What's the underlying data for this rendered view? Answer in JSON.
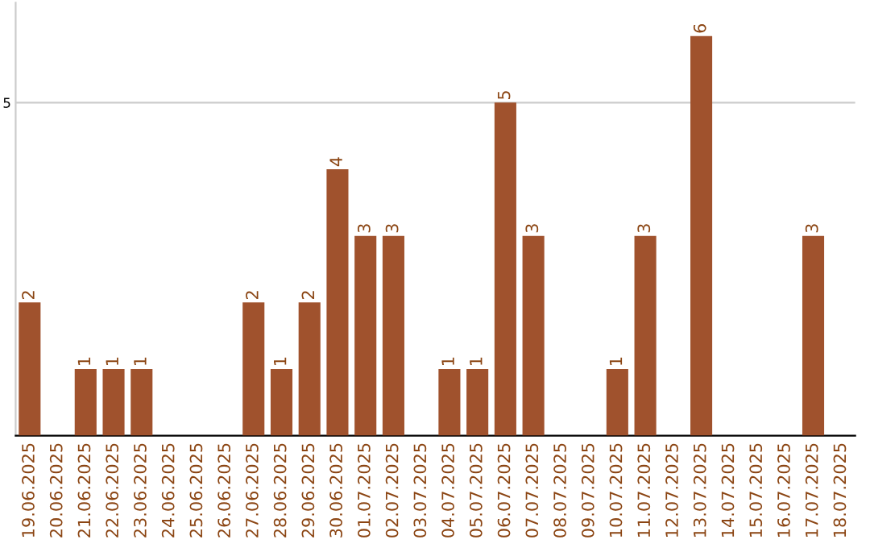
{
  "chart_data": {
    "type": "bar",
    "categories": [
      "19.06.2025",
      "20.06.2025",
      "21.06.2025",
      "22.06.2025",
      "23.06.2025",
      "24.06.2025",
      "25.06.2025",
      "26.06.2025",
      "27.06.2025",
      "28.06.2025",
      "29.06.2025",
      "30.06.2025",
      "01.07.2025",
      "02.07.2025",
      "03.07.2025",
      "04.07.2025",
      "05.07.2025",
      "06.07.2025",
      "07.07.2025",
      "08.07.2025",
      "09.07.2025",
      "10.07.2025",
      "11.07.2025",
      "12.07.2025",
      "13.07.2025",
      "14.07.2025",
      "15.07.2025",
      "16.07.2025",
      "17.07.2025",
      "18.07.2025"
    ],
    "values": [
      2,
      0,
      1,
      1,
      1,
      0,
      0,
      0,
      2,
      1,
      2,
      4,
      3,
      3,
      0,
      1,
      1,
      5,
      3,
      0,
      0,
      1,
      3,
      0,
      6,
      0,
      0,
      0,
      3,
      0
    ],
    "value_labels": [
      "2",
      null,
      "1",
      "1",
      "1",
      null,
      null,
      null,
      "2",
      "1",
      "2",
      "4",
      "3",
      "3",
      null,
      "1",
      "1",
      "5",
      "3",
      null,
      null,
      "1",
      "3",
      null,
      "6",
      null,
      null,
      null,
      "3",
      null
    ],
    "color": "#a0522d",
    "ylim": [
      0,
      6.5
    ],
    "yticks": [
      5
    ],
    "grid": "y"
  }
}
